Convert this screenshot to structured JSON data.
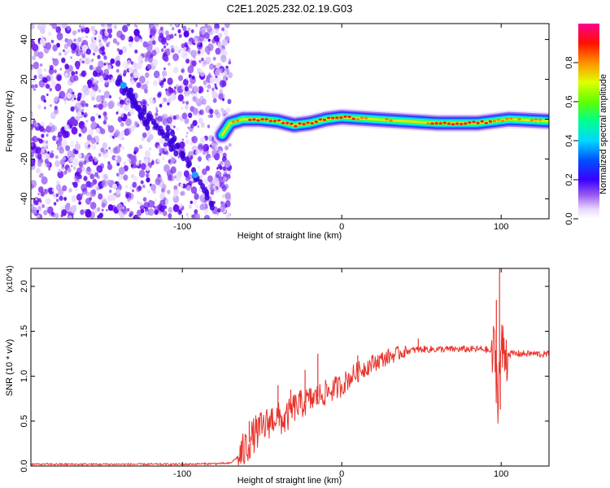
{
  "title": "C2E1.2025.232.02.19.G03",
  "chart_data": [
    {
      "type": "heatmap",
      "xlabel": "Height of straight line (km)",
      "ylabel": "Frequency (Hz)",
      "xlim": [
        -195,
        130
      ],
      "ylim": [
        -50,
        48
      ],
      "xticks": [
        -100,
        0,
        100
      ],
      "xtick_labels": [
        "-100",
        "0",
        "100"
      ],
      "yticks": [
        -40,
        -20,
        0,
        20,
        40
      ],
      "ytick_labels": [
        "-40",
        "-20",
        "0",
        "20",
        "40"
      ],
      "colorbar": {
        "label": "Normalized spectral amplitude",
        "range": [
          0,
          1
        ],
        "ticks": [
          0.0,
          0.2,
          0.4,
          0.6,
          0.8
        ],
        "tick_labels": [
          "0.0",
          "0.2",
          "0.4",
          "0.6",
          "0.8"
        ]
      },
      "noise_region_x": [
        -195,
        -75
      ],
      "signal_track": [
        {
          "x": -75,
          "f": -8
        },
        {
          "x": -70,
          "f": -2
        },
        {
          "x": -62,
          "f": 0
        },
        {
          "x": -52,
          "f": 0
        },
        {
          "x": -40,
          "f": -1
        },
        {
          "x": -30,
          "f": -3
        },
        {
          "x": -20,
          "f": -2
        },
        {
          "x": -10,
          "f": 0
        },
        {
          "x": 0,
          "f": 1
        },
        {
          "x": 20,
          "f": 0
        },
        {
          "x": 40,
          "f": -1
        },
        {
          "x": 60,
          "f": -2
        },
        {
          "x": 85,
          "f": -2
        },
        {
          "x": 95,
          "f": -1
        },
        {
          "x": 105,
          "f": 0
        },
        {
          "x": 130,
          "f": -1
        }
      ]
    },
    {
      "type": "line",
      "xlabel": "Height of straight line (km)",
      "ylabel": "SNR (10 * v/v)",
      "y_multiplier": "(x10^4)",
      "xlim": [
        -195,
        130
      ],
      "ylim": [
        0,
        2.2
      ],
      "xticks": [
        -100,
        0,
        100
      ],
      "xtick_labels": [
        "-100",
        "0",
        "100"
      ],
      "yticks": [
        0.0,
        0.5,
        1.0,
        1.5,
        2.0
      ],
      "ytick_labels": [
        "0.0",
        "0.5",
        "1.0",
        "1.5",
        "2.0"
      ],
      "series": [
        {
          "name": "SNR",
          "color": "#e8342c",
          "x": [
            -195,
            -150,
            -100,
            -70,
            -62,
            -55,
            -48,
            -42,
            -36,
            -30,
            -24,
            -18,
            -12,
            -6,
            0,
            6,
            12,
            20,
            30,
            40,
            50,
            60,
            70,
            80,
            90,
            96,
            98,
            100,
            102,
            110,
            120,
            130
          ],
          "y": [
            0.02,
            0.02,
            0.02,
            0.03,
            0.15,
            0.35,
            0.45,
            0.55,
            0.5,
            0.65,
            0.7,
            0.75,
            0.8,
            0.85,
            0.9,
            1.0,
            1.07,
            1.15,
            1.22,
            1.28,
            1.3,
            1.3,
            1.3,
            1.3,
            1.3,
            1.25,
            0.8,
            1.3,
            1.25,
            1.25,
            1.25,
            1.24
          ]
        }
      ],
      "spikes": [
        {
          "x": -58,
          "y": 0.5
        },
        {
          "x": -40,
          "y": 0.9
        },
        {
          "x": -32,
          "y": 0.85
        },
        {
          "x": -23,
          "y": 1.07
        },
        {
          "x": -15,
          "y": 1.25
        },
        {
          "x": 10,
          "y": 1.23
        },
        {
          "x": 48,
          "y": 1.42
        },
        {
          "x": 97,
          "y": 1.85
        },
        {
          "x": 99,
          "y": 2.2
        },
        {
          "x": 99.5,
          "y": 0.63
        },
        {
          "x": 101,
          "y": 1.45
        }
      ]
    }
  ],
  "colorbar_colors": [
    "#ffffff",
    "#e0d0ff",
    "#8a2be2",
    "#2a00ff",
    "#0060ff",
    "#00e0ff",
    "#00ff80",
    "#80ff00",
    "#ffff00",
    "#ff8000",
    "#ff0000",
    "#ff0080"
  ]
}
